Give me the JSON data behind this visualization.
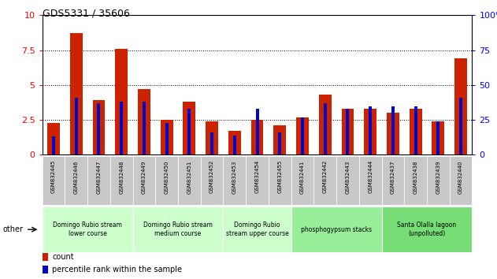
{
  "title": "GDS5331 / 35606",
  "samples": [
    "GSM832445",
    "GSM832446",
    "GSM832447",
    "GSM832448",
    "GSM832449",
    "GSM832450",
    "GSM832451",
    "GSM832452",
    "GSM832453",
    "GSM832454",
    "GSM832455",
    "GSM832441",
    "GSM832442",
    "GSM832443",
    "GSM832444",
    "GSM832437",
    "GSM832438",
    "GSM832439",
    "GSM832440"
  ],
  "count": [
    2.3,
    8.7,
    3.9,
    7.6,
    4.7,
    2.5,
    3.8,
    2.4,
    1.7,
    2.5,
    2.1,
    2.7,
    4.3,
    3.3,
    3.3,
    3.0,
    3.3,
    2.4,
    6.9
  ],
  "percentile_right": [
    13,
    41,
    37,
    38,
    38,
    23,
    33,
    16,
    14,
    33,
    16,
    27,
    37,
    33,
    35,
    35,
    35,
    24,
    41
  ],
  "groups": [
    {
      "label": "Domingo Rubio stream\nlower course",
      "start": 0,
      "end": 4,
      "color": "#ccffcc"
    },
    {
      "label": "Domingo Rubio stream\nmedium course",
      "start": 4,
      "end": 8,
      "color": "#ccffcc"
    },
    {
      "label": "Domingo Rubio\nstream upper course",
      "start": 8,
      "end": 11,
      "color": "#ccffcc"
    },
    {
      "label": "phosphogypsum stacks",
      "start": 11,
      "end": 15,
      "color": "#99ee99"
    },
    {
      "label": "Santa Olalla lagoon\n(unpolluted)",
      "start": 15,
      "end": 19,
      "color": "#77dd77"
    }
  ],
  "ylim_left": [
    0,
    10
  ],
  "ylim_right": [
    0,
    100
  ],
  "yticks_left": [
    0,
    2.5,
    5.0,
    7.5,
    10
  ],
  "yticks_right": [
    0,
    25,
    50,
    75,
    100
  ],
  "bar_color": "#cc2200",
  "pct_color": "#0000cc",
  "other_label": "other",
  "legend_count": "count",
  "legend_pct": "percentile rank within the sample"
}
